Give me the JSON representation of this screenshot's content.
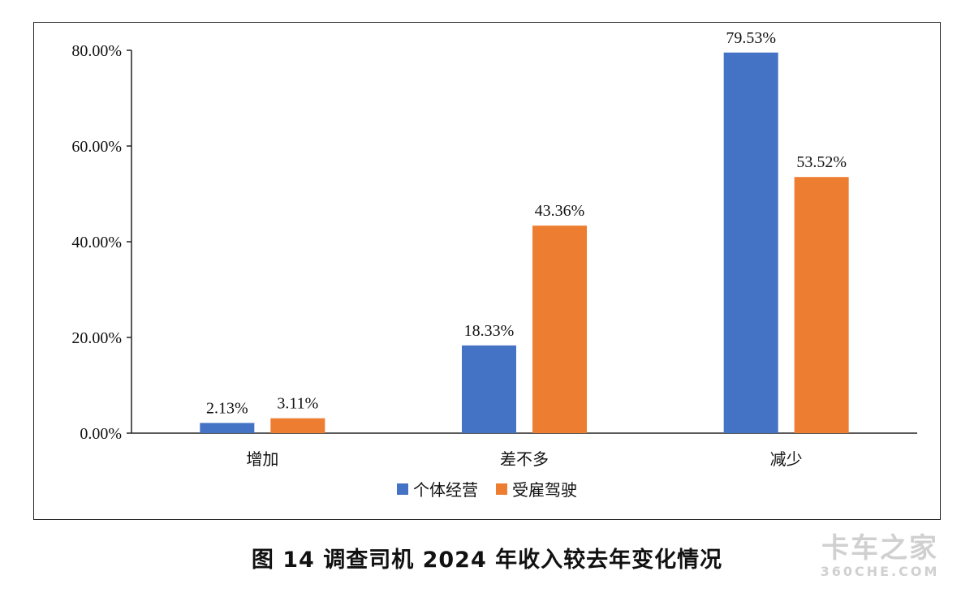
{
  "chart_data": {
    "type": "bar",
    "title": "图 14  调查司机 2024 年收入较去年变化情况",
    "categories": [
      "增加",
      "差不多",
      "减少"
    ],
    "series": [
      {
        "name": "个体经营",
        "values": [
          2.13,
          18.33,
          79.53
        ],
        "labels": [
          "2.13%",
          "18.33%",
          "79.53%"
        ],
        "color": "#4472C4"
      },
      {
        "name": "受雇驾驶",
        "values": [
          3.11,
          43.36,
          53.52
        ],
        "labels": [
          "3.11%",
          "43.36%",
          "53.52%"
        ],
        "color": "#ED7D31"
      }
    ],
    "ylim": [
      0,
      80
    ],
    "yticks": [
      0,
      20,
      40,
      60,
      80
    ],
    "ytick_labels": [
      "0.00%",
      "20.00%",
      "40.00%",
      "60.00%",
      "80.00%"
    ],
    "xlabel": "",
    "ylabel": "",
    "legend_position": "bottom",
    "grid": false
  },
  "watermark": {
    "main": "卡车之家",
    "sub": "360CHE.COM"
  }
}
